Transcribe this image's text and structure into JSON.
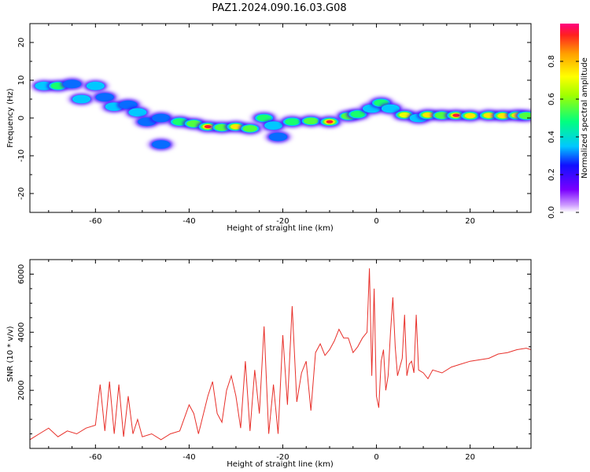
{
  "title": "PAZ1.2024.090.16.03.G08",
  "colors": {
    "snr_line": "#e8302a",
    "frame": "#000000"
  },
  "chart_data": [
    {
      "type": "heatmap",
      "xlabel": "Height of straight line (km)",
      "ylabel": "Frequency (Hz)",
      "xlim": [
        -74,
        33
      ],
      "ylim": [
        -25,
        25
      ],
      "xticks": [
        -60,
        -40,
        -20,
        0,
        20
      ],
      "yticks": [
        -20,
        -10,
        0,
        10,
        20
      ],
      "colorbar": {
        "label": "Normalized spectral amplitude",
        "range": [
          0,
          1
        ],
        "ticks": [
          0.0,
          0.2,
          0.4,
          0.6,
          0.8
        ],
        "tick_labels": [
          "0.0",
          "0.2",
          "0.4",
          "0.6",
          "0.8"
        ]
      },
      "blobs": [
        {
          "x": -71,
          "y": 8.5,
          "amp": 0.4
        },
        {
          "x": -68,
          "y": 8.5,
          "amp": 0.5
        },
        {
          "x": -65,
          "y": 9,
          "amp": 0.3
        },
        {
          "x": -63,
          "y": 5,
          "amp": 0.35
        },
        {
          "x": -60,
          "y": 8.5,
          "amp": 0.35
        },
        {
          "x": -58,
          "y": 5.5,
          "amp": 0.3
        },
        {
          "x": -56,
          "y": 3,
          "amp": 0.35
        },
        {
          "x": -53,
          "y": 3.5,
          "amp": 0.3
        },
        {
          "x": -51,
          "y": 1.5,
          "amp": 0.35
        },
        {
          "x": -49,
          "y": -1,
          "amp": 0.3
        },
        {
          "x": -46,
          "y": 0,
          "amp": 0.3
        },
        {
          "x": -46,
          "y": -7,
          "amp": 0.3
        },
        {
          "x": -42,
          "y": -1,
          "amp": 0.5
        },
        {
          "x": -39,
          "y": -1.5,
          "amp": 0.55
        },
        {
          "x": -36,
          "y": -2.3,
          "amp": 0.95
        },
        {
          "x": -33,
          "y": -2.5,
          "amp": 0.65
        },
        {
          "x": -30,
          "y": -2.3,
          "amp": 0.85
        },
        {
          "x": -27,
          "y": -2.8,
          "amp": 0.65
        },
        {
          "x": -24,
          "y": 0,
          "amp": 0.5
        },
        {
          "x": -22,
          "y": -2,
          "amp": 0.45
        },
        {
          "x": -21,
          "y": -5,
          "amp": 0.3
        },
        {
          "x": -18,
          "y": -1,
          "amp": 0.5
        },
        {
          "x": -14,
          "y": -0.8,
          "amp": 0.55
        },
        {
          "x": -10,
          "y": -1,
          "amp": 0.95
        },
        {
          "x": -6,
          "y": 0.5,
          "amp": 0.6
        },
        {
          "x": -4,
          "y": 1,
          "amp": 0.5
        },
        {
          "x": -1,
          "y": 2.5,
          "amp": 0.45
        },
        {
          "x": 1,
          "y": 4,
          "amp": 0.5
        },
        {
          "x": 3,
          "y": 2.5,
          "amp": 0.35
        },
        {
          "x": 6,
          "y": 0.8,
          "amp": 0.7
        },
        {
          "x": 9,
          "y": 0,
          "amp": 0.4
        },
        {
          "x": 11,
          "y": 0.8,
          "amp": 0.75
        },
        {
          "x": 14,
          "y": 0.7,
          "amp": 0.6
        },
        {
          "x": 17,
          "y": 0.7,
          "amp": 0.95
        },
        {
          "x": 20,
          "y": 0.6,
          "amp": 0.8
        },
        {
          "x": 24,
          "y": 0.7,
          "amp": 0.85
        },
        {
          "x": 27,
          "y": 0.6,
          "amp": 0.8
        },
        {
          "x": 30,
          "y": 0.7,
          "amp": 0.75
        },
        {
          "x": 32,
          "y": 0.6,
          "amp": 0.55
        }
      ]
    },
    {
      "type": "line",
      "xlabel": "Height of straight line (km)",
      "ylabel": "SNR (10 * v/v)",
      "xlim": [
        -74,
        33
      ],
      "ylim": [
        0,
        6500
      ],
      "xticks": [
        -60,
        -40,
        -20,
        0,
        20
      ],
      "yticks": [
        2000,
        4000,
        6000
      ],
      "series": [
        {
          "x": [
            -74,
            -72,
            -70,
            -68,
            -66,
            -64,
            -62,
            -60,
            -59,
            -58,
            -57,
            -56,
            -55,
            -54,
            -53,
            -52,
            -51,
            -50,
            -48,
            -46,
            -44,
            -42,
            -40,
            -39,
            -38,
            -36,
            -35,
            -34,
            -33,
            -32,
            -31,
            -30,
            -29,
            -28,
            -27,
            -26,
            -25,
            -24,
            -23,
            -22,
            -21,
            -20,
            -19,
            -18,
            -17,
            -16,
            -15,
            -14,
            -13,
            -12,
            -11,
            -10,
            -9,
            -8,
            -7,
            -6,
            -5,
            -4,
            -3,
            -2,
            -1.5,
            -1,
            -0.5,
            0,
            0.5,
            1,
            1.5,
            2,
            2.5,
            3,
            3.5,
            4,
            4.5,
            5,
            5.5,
            6,
            6.5,
            7,
            7.5,
            8,
            8.5,
            9,
            10,
            11,
            12,
            14,
            16,
            18,
            20,
            22,
            24,
            26,
            28,
            30,
            32,
            33
          ],
          "y": [
            300,
            500,
            700,
            400,
            600,
            500,
            700,
            800,
            2200,
            600,
            2300,
            500,
            2200,
            400,
            1800,
            500,
            1000,
            400,
            500,
            300,
            500,
            600,
            1500,
            1200,
            500,
            1800,
            2300,
            1200,
            900,
            2000,
            2500,
            1800,
            700,
            3000,
            600,
            2700,
            1200,
            4200,
            500,
            2200,
            500,
            3900,
            1500,
            4900,
            1600,
            2600,
            3000,
            1300,
            3300,
            3600,
            3200,
            3400,
            3700,
            4100,
            3800,
            3800,
            3300,
            3500,
            3800,
            4000,
            6200,
            2500,
            5500,
            1800,
            1400,
            3000,
            3400,
            2000,
            2500,
            4000,
            5200,
            3500,
            2500,
            2800,
            3100,
            4600,
            2500,
            2900,
            3000,
            2600,
            4600,
            2700,
            2600,
            2400,
            2700,
            2600,
            2800,
            2900,
            3000,
            3050,
            3100,
            3250,
            3300,
            3400,
            3450,
            3400
          ]
        }
      ]
    }
  ]
}
